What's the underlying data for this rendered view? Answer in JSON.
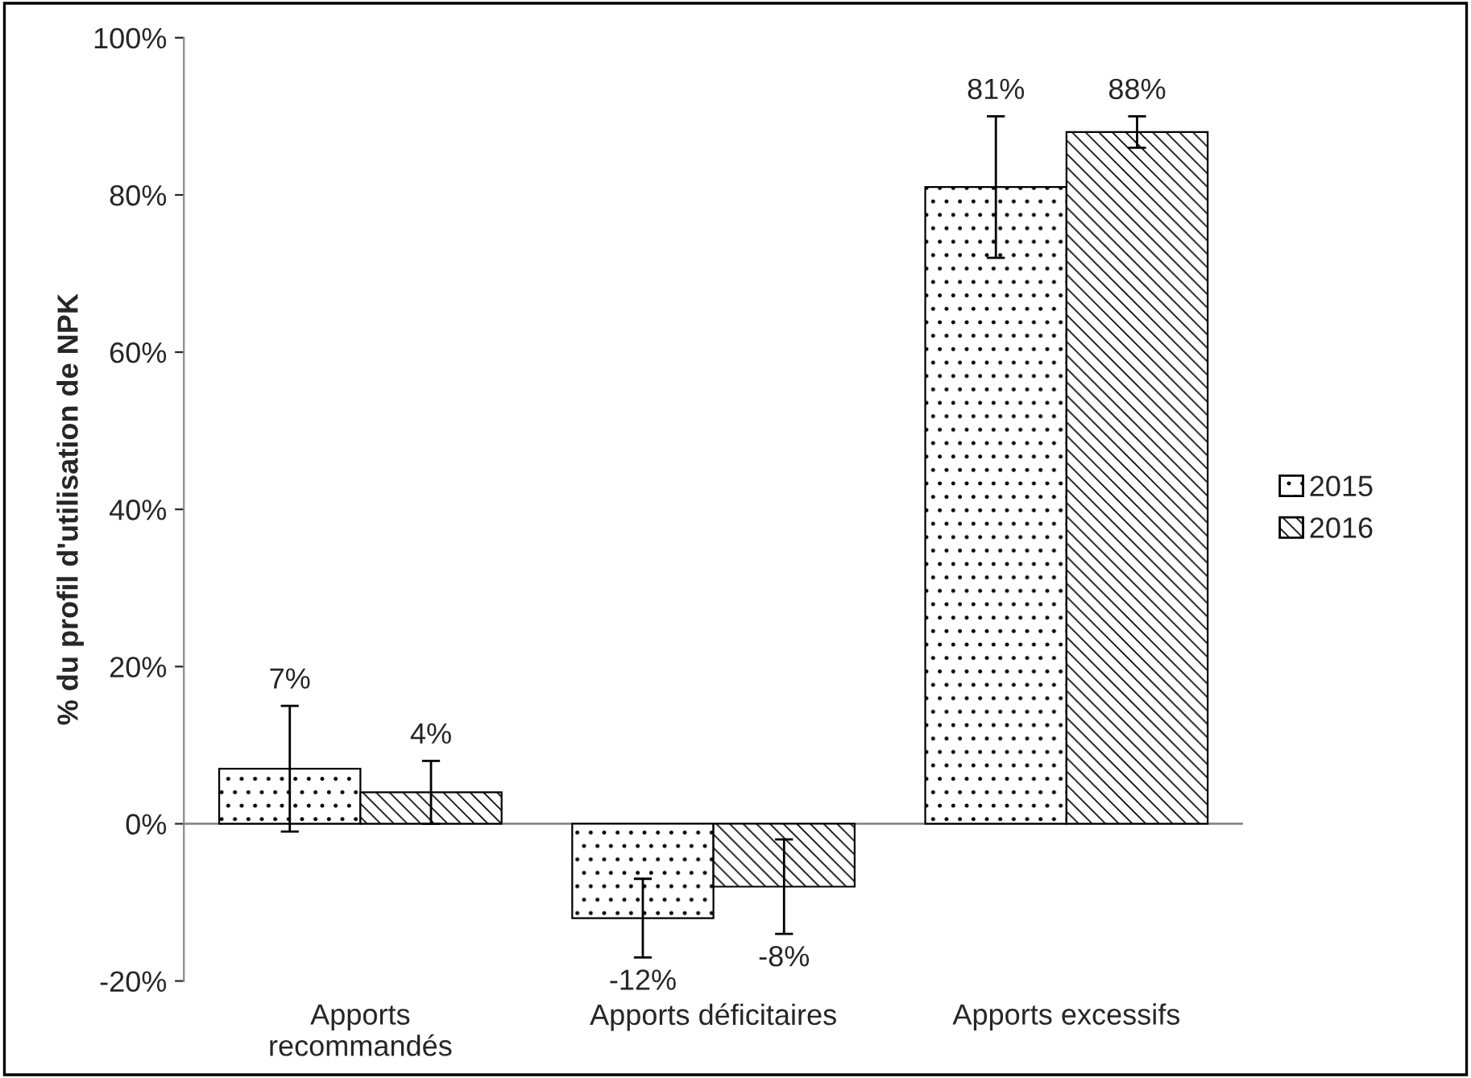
{
  "chart_data": {
    "type": "bar",
    "ylabel": "% du profil d'utilisation de NPK",
    "categories": [
      "Apports\nrecommandés",
      "Apports déficitaires",
      "Apports excessifs"
    ],
    "series": [
      {
        "name": "2015",
        "color": "#000000",
        "values": [
          7,
          -12,
          81
        ],
        "errors": [
          8,
          5,
          9
        ],
        "value_labels": [
          "7%",
          "-12%",
          "81%"
        ]
      },
      {
        "name": "2016",
        "color": "#000000",
        "values": [
          4,
          -8,
          88
        ],
        "errors": [
          4,
          6,
          2
        ],
        "value_labels": [
          "4%",
          "-8%",
          "88%"
        ]
      }
    ],
    "ylim": [
      -20,
      100
    ],
    "yticks": [
      {
        "value": -20,
        "label": "-20%"
      },
      {
        "value": 0,
        "label": "0%"
      },
      {
        "value": 20,
        "label": "20%"
      },
      {
        "value": 40,
        "label": "40%"
      },
      {
        "value": 60,
        "label": "60%"
      },
      {
        "value": 80,
        "label": "80%"
      },
      {
        "value": 100,
        "label": "100%"
      }
    ],
    "legend": "right"
  }
}
